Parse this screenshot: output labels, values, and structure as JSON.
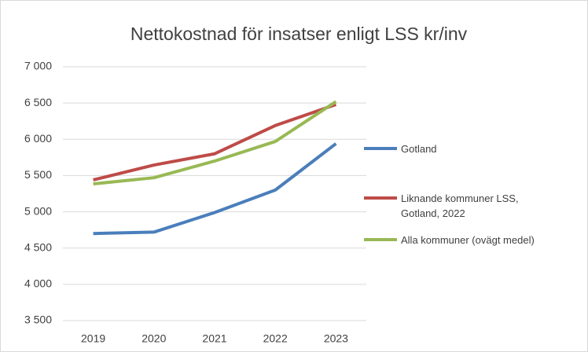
{
  "chart_data": {
    "type": "line",
    "title": "Nettokostnad för insatser enligt LSS kr/inv",
    "categories": [
      "2019",
      "2020",
      "2021",
      "2022",
      "2023"
    ],
    "series": [
      {
        "name": "Gotland",
        "color": "#4a7ebb",
        "values": [
          4700,
          4720,
          4990,
          5300,
          5940
        ]
      },
      {
        "name": "Liknande kommuner LSS, Gotland, 2022",
        "color": "#be4b48",
        "values": [
          5440,
          5645,
          5800,
          6190,
          6480
        ]
      },
      {
        "name": "Alla kommuner (ovägt medel)",
        "color": "#98b954",
        "values": [
          5385,
          5470,
          5700,
          5970,
          6520
        ]
      }
    ],
    "ylim": [
      3500,
      7000
    ],
    "yticks": [
      {
        "value": 3500,
        "label": "3 500"
      },
      {
        "value": 4000,
        "label": "4 000"
      },
      {
        "value": 4500,
        "label": "4 500"
      },
      {
        "value": 5000,
        "label": "5 000"
      },
      {
        "value": 5500,
        "label": "5 500"
      },
      {
        "value": 6000,
        "label": "6 000"
      },
      {
        "value": 6500,
        "label": "6 500"
      },
      {
        "value": 7000,
        "label": "7 000"
      }
    ],
    "grid": true,
    "legend": "right"
  }
}
